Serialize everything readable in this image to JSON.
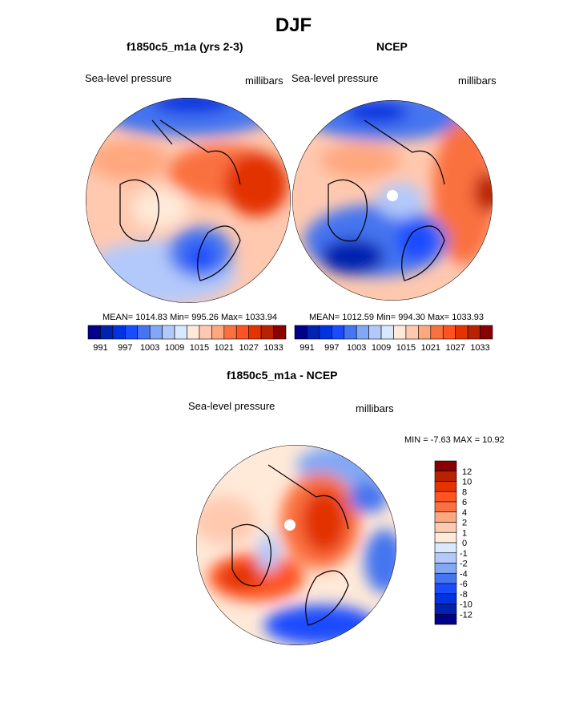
{
  "title": "DJF",
  "panels": [
    {
      "title": "f1850c5_m1a (yrs 2-3)",
      "left_label": "Sea-level pressure",
      "right_label": "millibars",
      "stats": "MEAN= 1014.83  Min= 995.26  Max= 1033.94"
    },
    {
      "title": "NCEP",
      "left_label": "Sea-level pressure",
      "right_label": "millibars",
      "stats": "MEAN= 1012.59  Min= 994.30  Max= 1033.93"
    },
    {
      "title": "f1850c5_m1a - NCEP",
      "left_label": "Sea-level pressure",
      "right_label": "millibars",
      "stats": "MIN =  -7.63 MAX =  10.92"
    }
  ],
  "colorbar_abs": {
    "labels": [
      "991",
      "997",
      "1003",
      "1009",
      "1015",
      "1021",
      "1027",
      "1033"
    ],
    "levels": [
      991,
      994,
      997,
      1000,
      1003,
      1006,
      1009,
      1012,
      1015,
      1018,
      1021,
      1024,
      1027,
      1030,
      1033
    ],
    "colors": [
      "#00008c",
      "#0022b0",
      "#0033e0",
      "#1a4cff",
      "#4575f0",
      "#82a8f5",
      "#b3c9fb",
      "#d8e9ff",
      "#ffe9d8",
      "#ffc9b0",
      "#ffa77f",
      "#fa7141",
      "#ff5322",
      "#e23300",
      "#b82200",
      "#8a0000"
    ]
  },
  "colorbar_diff": {
    "labels": [
      "12",
      "10",
      "8",
      "6",
      "4",
      "2",
      "1",
      "0",
      "-1",
      "-2",
      "-4",
      "-6",
      "-8",
      "-10",
      "-12"
    ],
    "colors": [
      "#8a0000",
      "#b82200",
      "#e23300",
      "#ff5322",
      "#fa7141",
      "#ffa77f",
      "#ffc9b0",
      "#ffe9d8",
      "#d8e9ff",
      "#b3c9fb",
      "#82a8f5",
      "#4575f0",
      "#1a4cff",
      "#0033e0",
      "#0022b0",
      "#00008c"
    ]
  }
}
